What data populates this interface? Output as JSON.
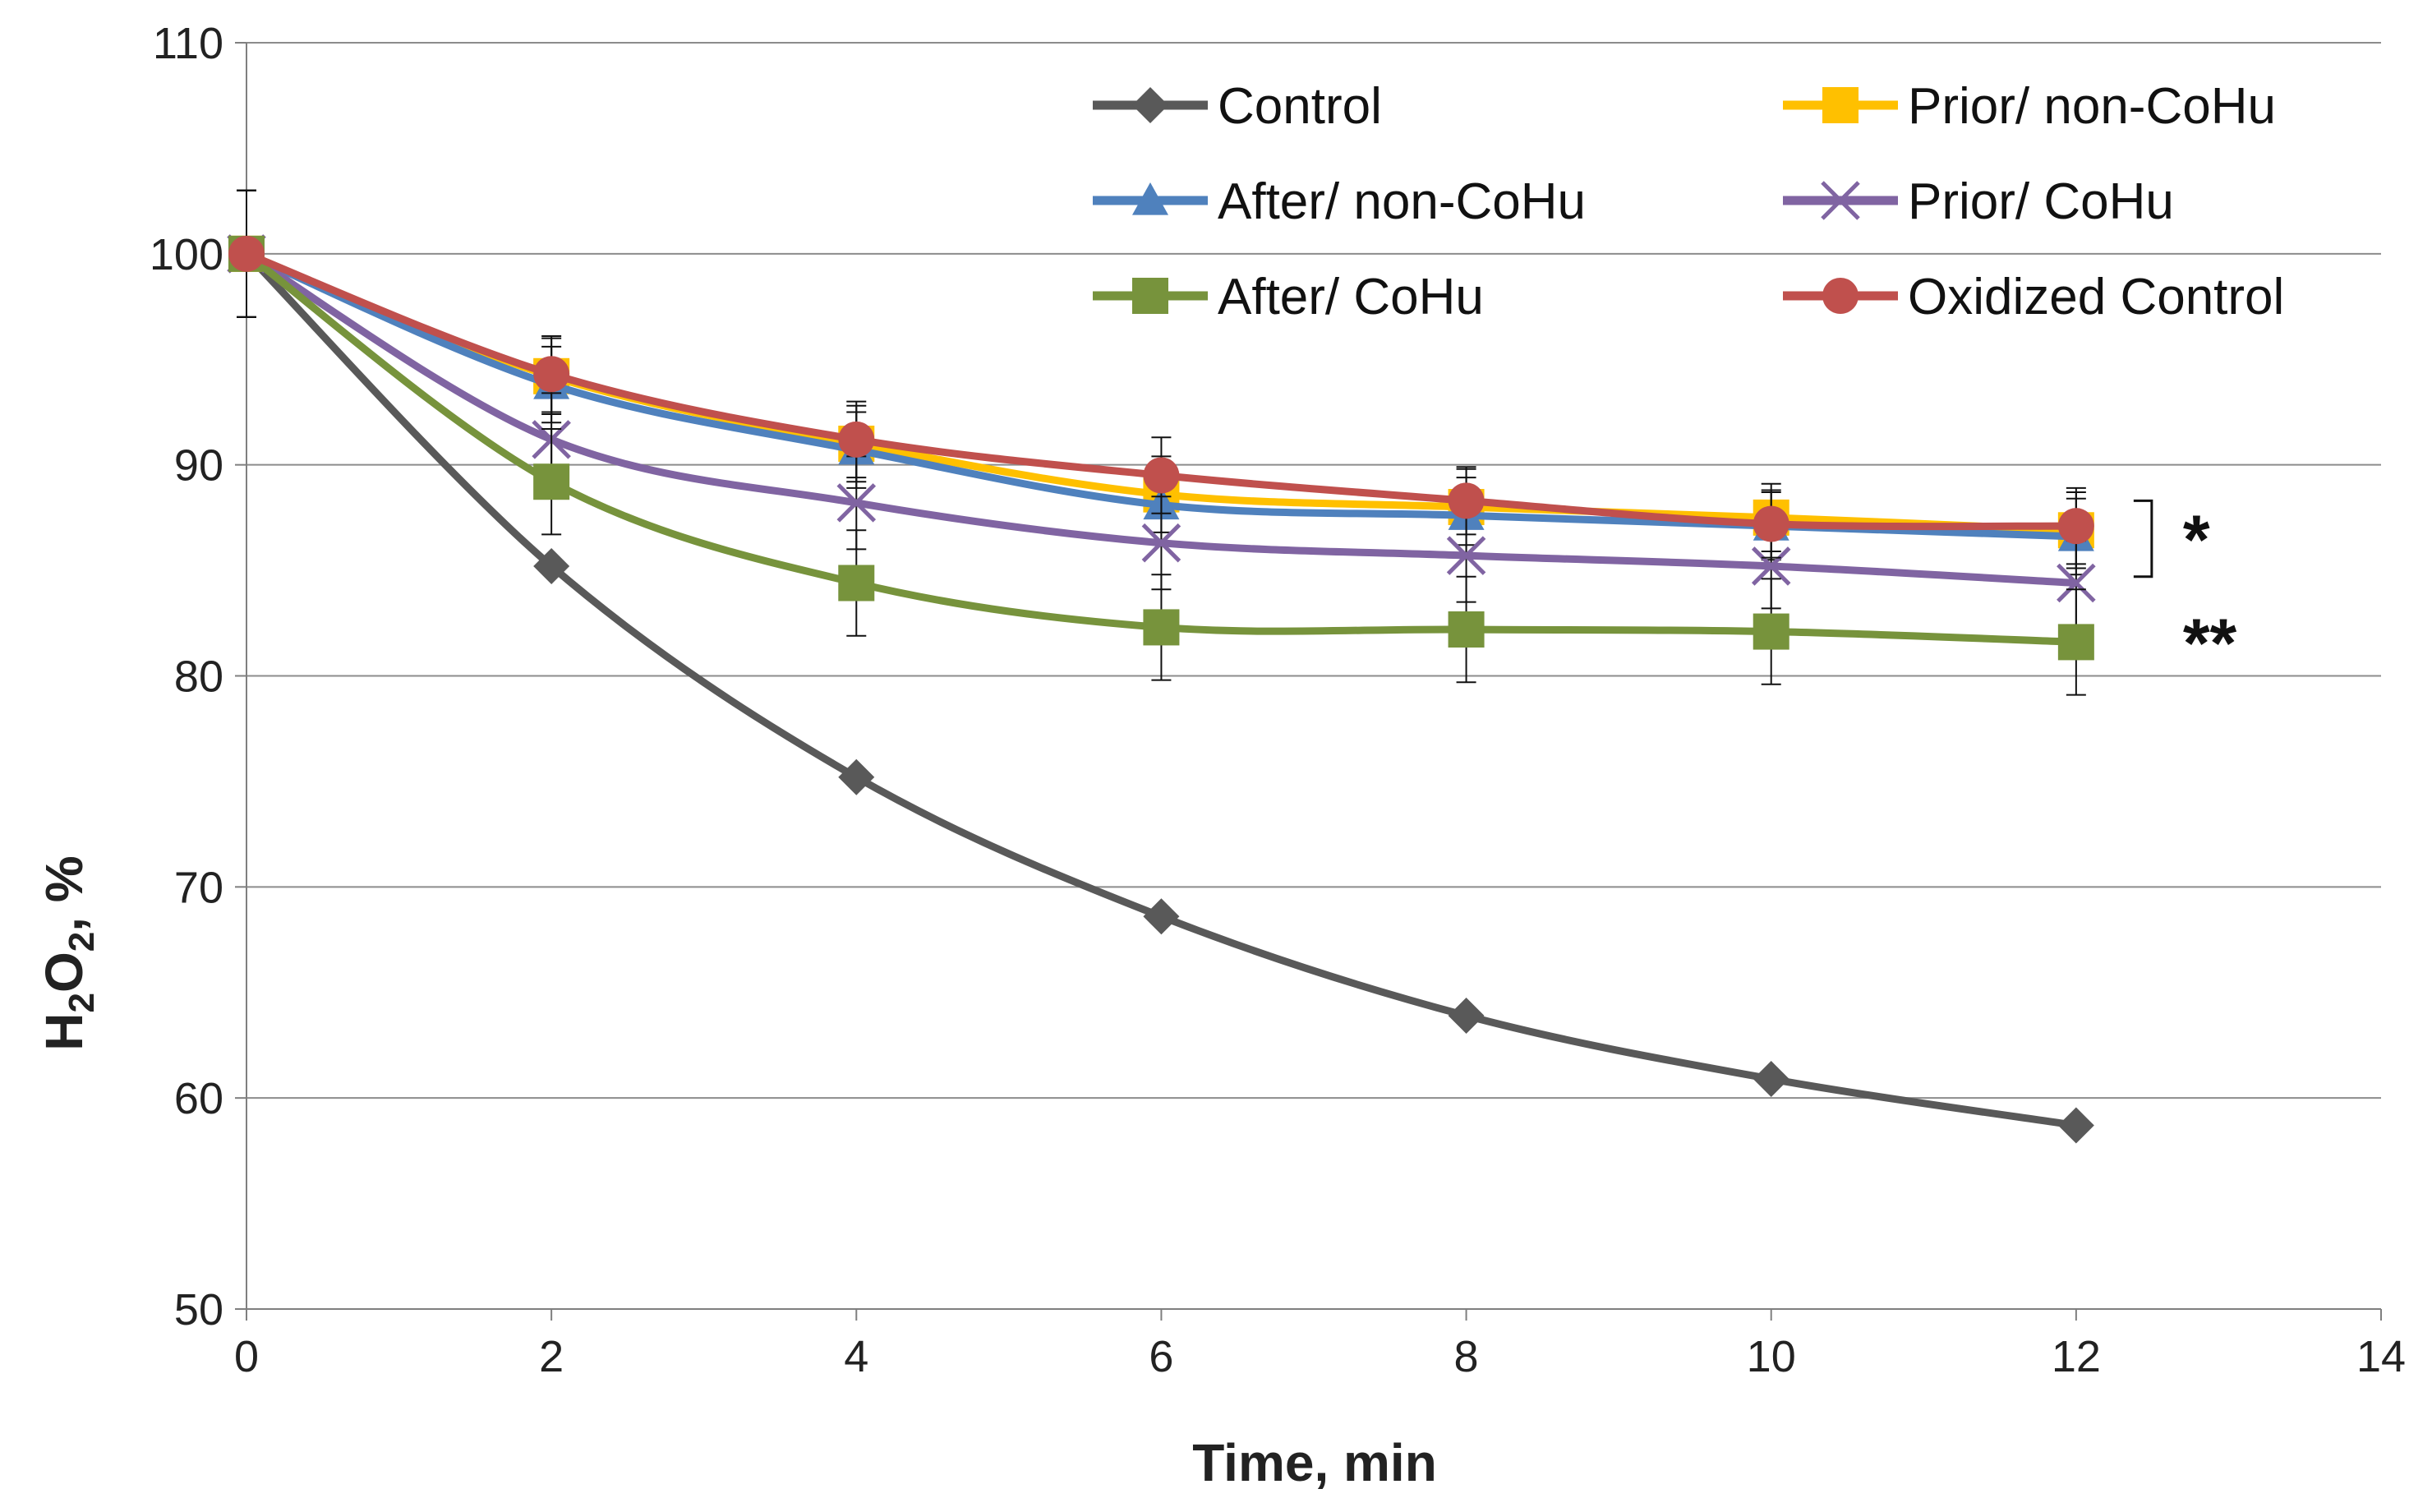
{
  "chart_data": {
    "type": "line",
    "title": "",
    "xlabel": "Time, min",
    "ylabel": {
      "main": "H",
      "sub1": "2",
      "mid": "O",
      "sub2": "2",
      "tail": ", %"
    },
    "xlim": [
      0,
      14
    ],
    "ylim": [
      50,
      110
    ],
    "xticks": [
      0,
      2,
      4,
      6,
      8,
      10,
      12,
      14
    ],
    "yticks": [
      50,
      60,
      70,
      80,
      90,
      100,
      110
    ],
    "x": [
      0,
      2,
      4,
      6,
      8,
      10,
      12
    ],
    "grid": "horizontal",
    "legend_position": "top-right",
    "series": [
      {
        "name": "Control",
        "color": "#595959",
        "marker": "diamond",
        "values": [
          100,
          85.2,
          75.2,
          68.6,
          63.9,
          60.9,
          58.7
        ],
        "errors": [
          0,
          0,
          0,
          0,
          0,
          0,
          0
        ]
      },
      {
        "name": "Prior/ non-CoHu",
        "color": "#FFC000",
        "marker": "square",
        "values": [
          100,
          94.2,
          91.0,
          88.6,
          88.0,
          87.5,
          86.9
        ],
        "errors": [
          3,
          1.8,
          1.8,
          1.8,
          1.8,
          1.6,
          1.8
        ]
      },
      {
        "name": "After/ non-CoHu",
        "color": "#4F81BD",
        "marker": "triangle",
        "values": [
          100,
          93.8,
          90.7,
          88.1,
          87.6,
          87.1,
          86.6
        ],
        "errors": [
          3,
          1.8,
          1.8,
          1.8,
          1.8,
          1.6,
          1.8
        ]
      },
      {
        "name": "Prior/ CoHu",
        "color": "#8064A2",
        "marker": "x",
        "values": [
          100,
          91.2,
          88.2,
          86.3,
          85.7,
          85.2,
          84.4
        ],
        "errors": [
          3,
          2.2,
          2.2,
          2.2,
          2.2,
          2.0,
          2.0
        ]
      },
      {
        "name": "After/ CoHu",
        "color": "#77933C",
        "marker": "square",
        "values": [
          100,
          89.2,
          84.4,
          82.3,
          82.2,
          82.1,
          81.6
        ],
        "errors": [
          3,
          2.5,
          2.5,
          2.5,
          2.5,
          2.5,
          2.5
        ]
      },
      {
        "name": "Oxidized Control",
        "color": "#C0504D",
        "marker": "circle",
        "values": [
          100,
          94.3,
          91.2,
          89.5,
          88.3,
          87.2,
          87.1
        ],
        "errors": [
          3,
          1.8,
          1.8,
          1.8,
          1.6,
          1.6,
          1.8
        ]
      }
    ],
    "annotations": [
      {
        "text": "*",
        "target": "top group at x=12 (bracket)"
      },
      {
        "text": "**",
        "target": "After/ CoHu at x=12"
      }
    ]
  }
}
